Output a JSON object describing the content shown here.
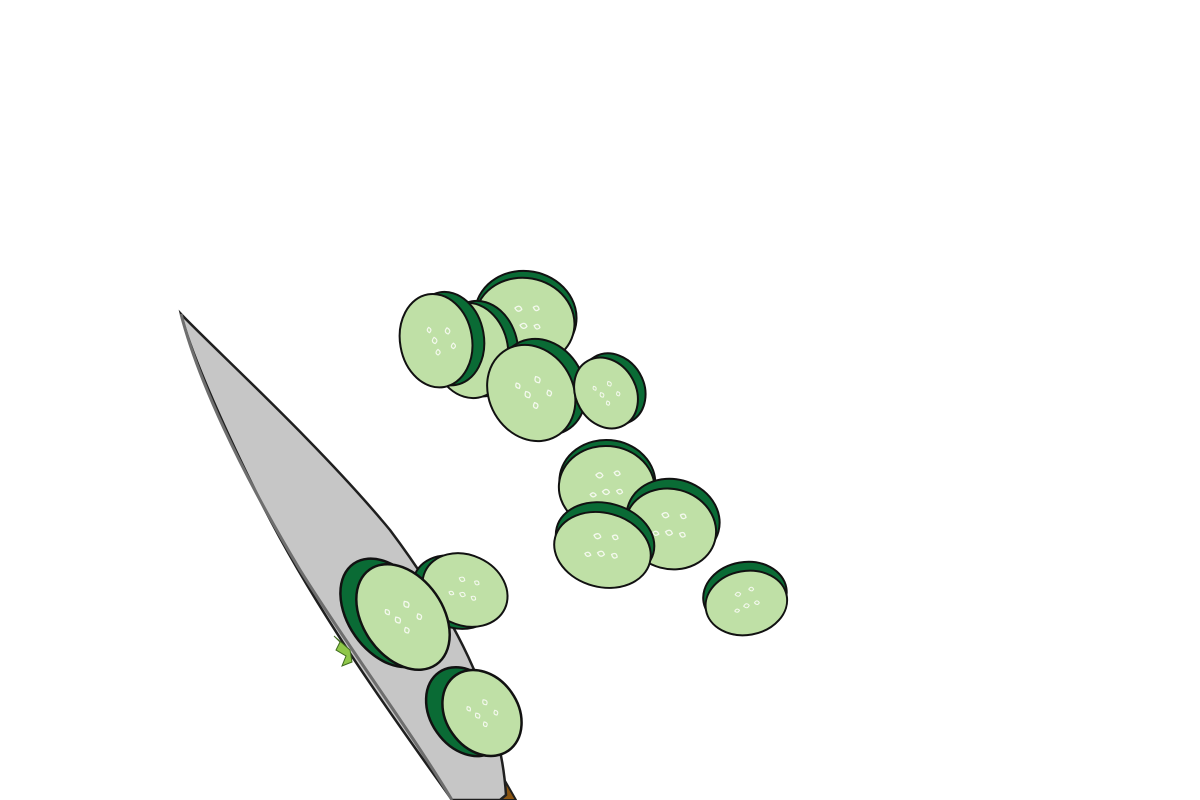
{
  "scene": {
    "subject": "knife",
    "object": "cucumber-slices",
    "colors": {
      "background": "#ffffff",
      "blade": "#c6c6c6",
      "blade_outline": "#1f1f1f",
      "handle": "#8a5410",
      "cucumber_skin": "#0a6b35",
      "cucumber_flesh": "#bfe0a6",
      "seed": "#f4f9ee",
      "juice": "#8fc74a"
    }
  }
}
